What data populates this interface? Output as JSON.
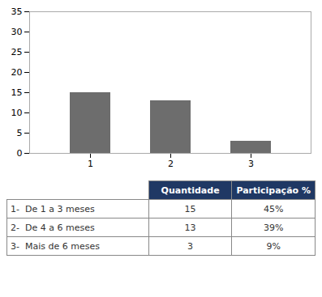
{
  "chart_data": {
    "type": "bar",
    "categories": [
      "1",
      "2",
      "3"
    ],
    "values": [
      15,
      13,
      3
    ],
    "color": "#6d6d6d",
    "ylim": [
      0,
      35
    ],
    "yticks": [
      0,
      5,
      10,
      15,
      20,
      25,
      30,
      35
    ],
    "grid": false,
    "table_headers": [
      "Quantidade",
      "Participação %"
    ],
    "table_rows": [
      [
        "1-  De 1 a 3 meses",
        "15",
        "45%"
      ],
      [
        "2-  De 4 a 6 meses",
        "13",
        "39%"
      ],
      [
        "3-  Mais de 6 meses",
        "3",
        "9%"
      ]
    ]
  }
}
